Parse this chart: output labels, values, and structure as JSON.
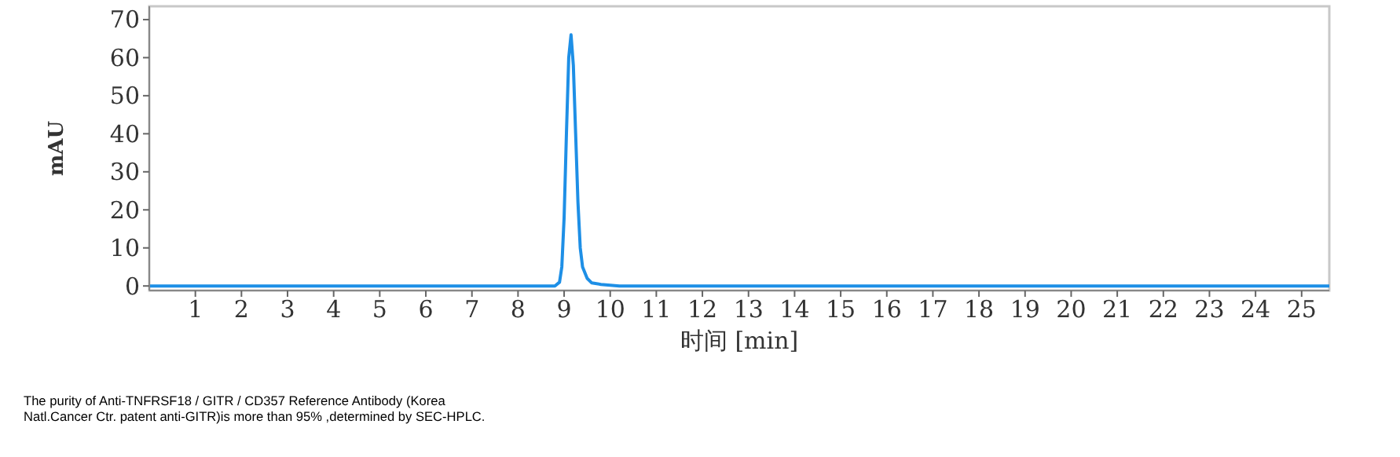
{
  "chart_data": {
    "type": "line",
    "xlabel": "时间 [min]",
    "ylabel": "mAU",
    "x": [
      0,
      8.8,
      8.9,
      8.95,
      9.0,
      9.05,
      9.1,
      9.15,
      9.2,
      9.25,
      9.3,
      9.35,
      9.4,
      9.5,
      9.6,
      9.8,
      10.0,
      10.2,
      25.6
    ],
    "series": [
      {
        "color": "#1e8fe6",
        "values": [
          0,
          0,
          1,
          5,
          18,
          40,
          60,
          66,
          58,
          40,
          22,
          10,
          5,
          2,
          0.8,
          0.4,
          0.2,
          0,
          0
        ]
      }
    ],
    "xlim": [
      0,
      25.6
    ],
    "xticks": [
      1,
      2,
      3,
      4,
      5,
      6,
      7,
      8,
      9,
      10,
      11,
      12,
      13,
      14,
      15,
      16,
      17,
      18,
      19,
      20,
      21,
      22,
      23,
      24,
      25
    ],
    "ylim": [
      -1.2,
      73.5
    ],
    "yticks": [
      0,
      10,
      20,
      30,
      40,
      50,
      60,
      70
    ],
    "grid": false,
    "line_style": "solid",
    "annotations": [
      "The purity of Anti-TNFRSF18 / GITR / CD357 Reference Antibody (Korea Natl.Cancer Ctr. patent anti-GITR)is more than 95% ,determined by SEC-HPLC."
    ]
  }
}
